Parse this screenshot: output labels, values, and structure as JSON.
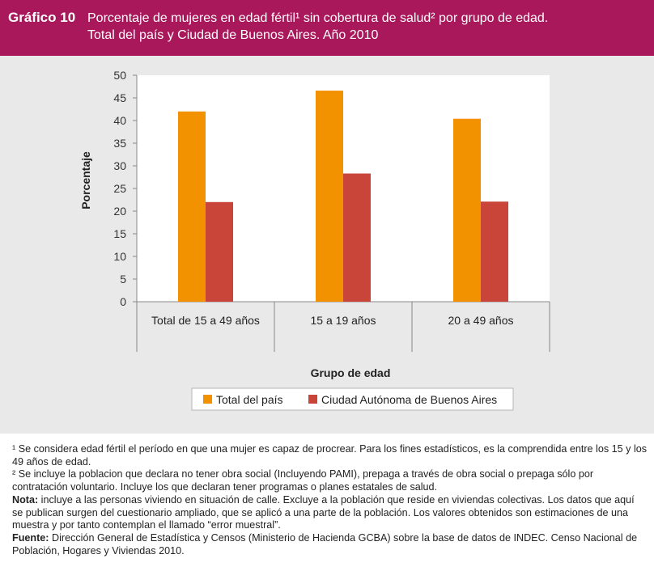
{
  "header": {
    "figure_number": "Gráfico 10",
    "title_line1": "Porcentaje de mujeres en edad fértil¹ sin cobertura de salud² por grupo de edad.",
    "title_line2": "Total del país y Ciudad de Buenos Aires. Año 2010"
  },
  "colors": {
    "header_bg": "#a8185a",
    "series_total": "#f39200",
    "series_caba": "#c9453a",
    "panel_bg": "#e9e9e9"
  },
  "chart_data": {
    "type": "bar",
    "title": "Porcentaje de mujeres en edad fértil sin cobertura de salud por grupo de edad",
    "xlabel": "Grupo de edad",
    "ylabel": "Porcentaje",
    "ylim": [
      0,
      50
    ],
    "yticks": [
      "0",
      "5",
      "10",
      "15",
      "20",
      "25",
      "30",
      "35",
      "40",
      "45",
      "50"
    ],
    "categories": [
      "Total de 15 a 49 años",
      "15 a 19 años",
      "20 a 49 años"
    ],
    "series": [
      {
        "name": "Total del país",
        "values": [
          42.0,
          46.6,
          40.4
        ]
      },
      {
        "name": "Ciudad Autónoma de Buenos Aires",
        "values": [
          22.0,
          28.3,
          22.1
        ]
      }
    ],
    "legend_position": "bottom",
    "grid": false
  },
  "notes": {
    "n1": "¹ Se considera edad fértil el período en que una mujer es capaz de procrear. Para los fines estadísticos, es la comprendida entre los 15 y los 49 años de edad.",
    "n2": "² Se incluye la poblacion que declara no tener obra social (Incluyendo PAMI), prepaga a través de obra social o prepaga sólo por contratación voluntario. Incluye los que declaran tener programas o planes estatales de salud.",
    "nota_label": "Nota:",
    "nota_text": " incluye a las personas viviendo en situación de calle. Excluye a la población que reside en viviendas colectivas. Los datos que aquí se publican surgen del cuestionario ampliado, que se aplicó a una parte de la población. Los valores obtenidos son estimaciones de una muestra y por tanto contemplan el llamado “error muestral”.",
    "fuente_label": "Fuente:",
    "fuente_text": " Dirección General de Estadística y Censos (Ministerio de Hacienda GCBA) sobre la base de datos de INDEC. Censo Nacional de Población, Hogares y Viviendas 2010."
  }
}
